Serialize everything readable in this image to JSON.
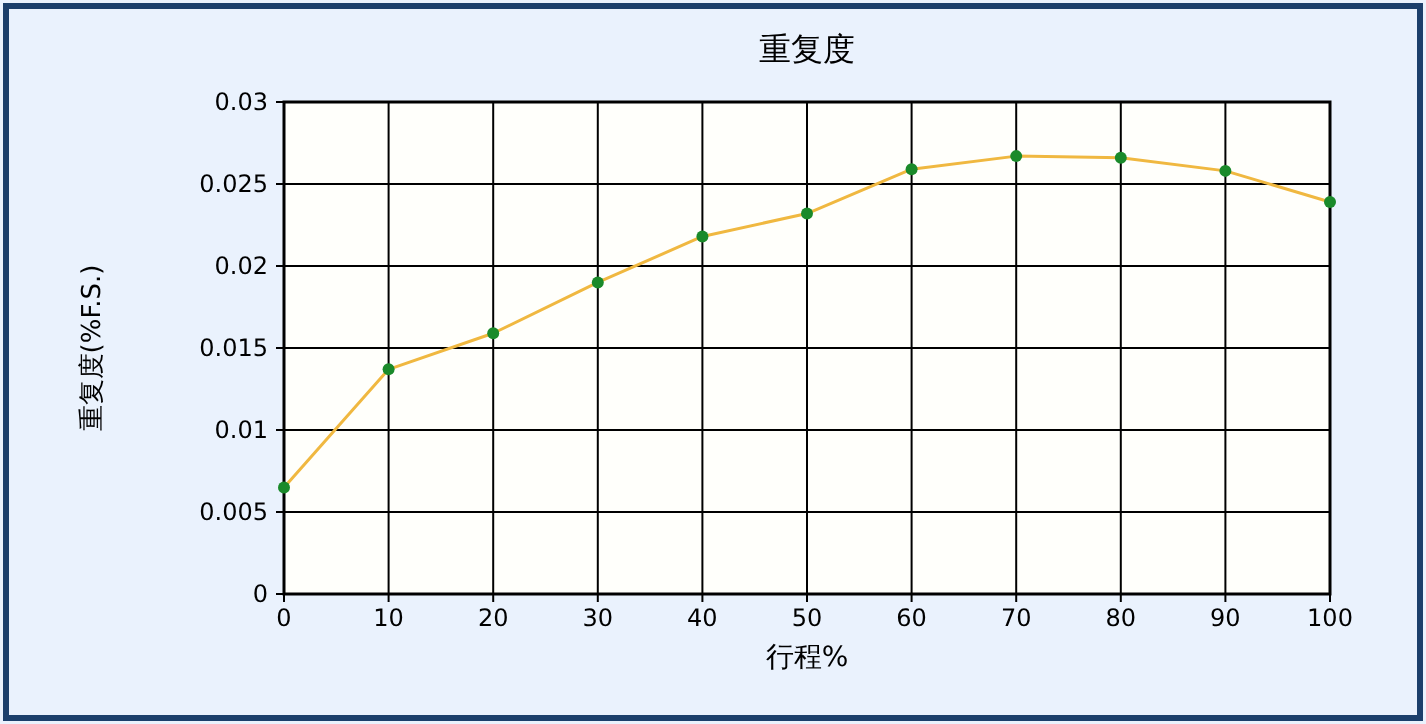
{
  "chart_data": {
    "type": "line",
    "title": "重复度",
    "xlabel": "行程%",
    "ylabel": "重复度(%F.S.)",
    "x": [
      0,
      10,
      20,
      30,
      40,
      50,
      60,
      70,
      80,
      90,
      100
    ],
    "series": [
      {
        "color": "#f0b840",
        "values": [
          0.0065,
          0.0137,
          0.0159,
          0.019,
          0.0218,
          0.0232,
          0.0259,
          0.0267,
          0.0266,
          0.0258,
          0.0239
        ]
      }
    ],
    "xlim": [
      0,
      100
    ],
    "xticks": [
      0,
      10,
      20,
      30,
      40,
      50,
      60,
      70,
      80,
      90,
      100
    ],
    "ylim": [
      0,
      0.03
    ],
    "yticks": [
      0,
      0.005,
      0.01,
      0.015,
      0.02,
      0.025,
      0.03
    ],
    "grid": true,
    "marker": "circle",
    "line_style": "solid"
  }
}
